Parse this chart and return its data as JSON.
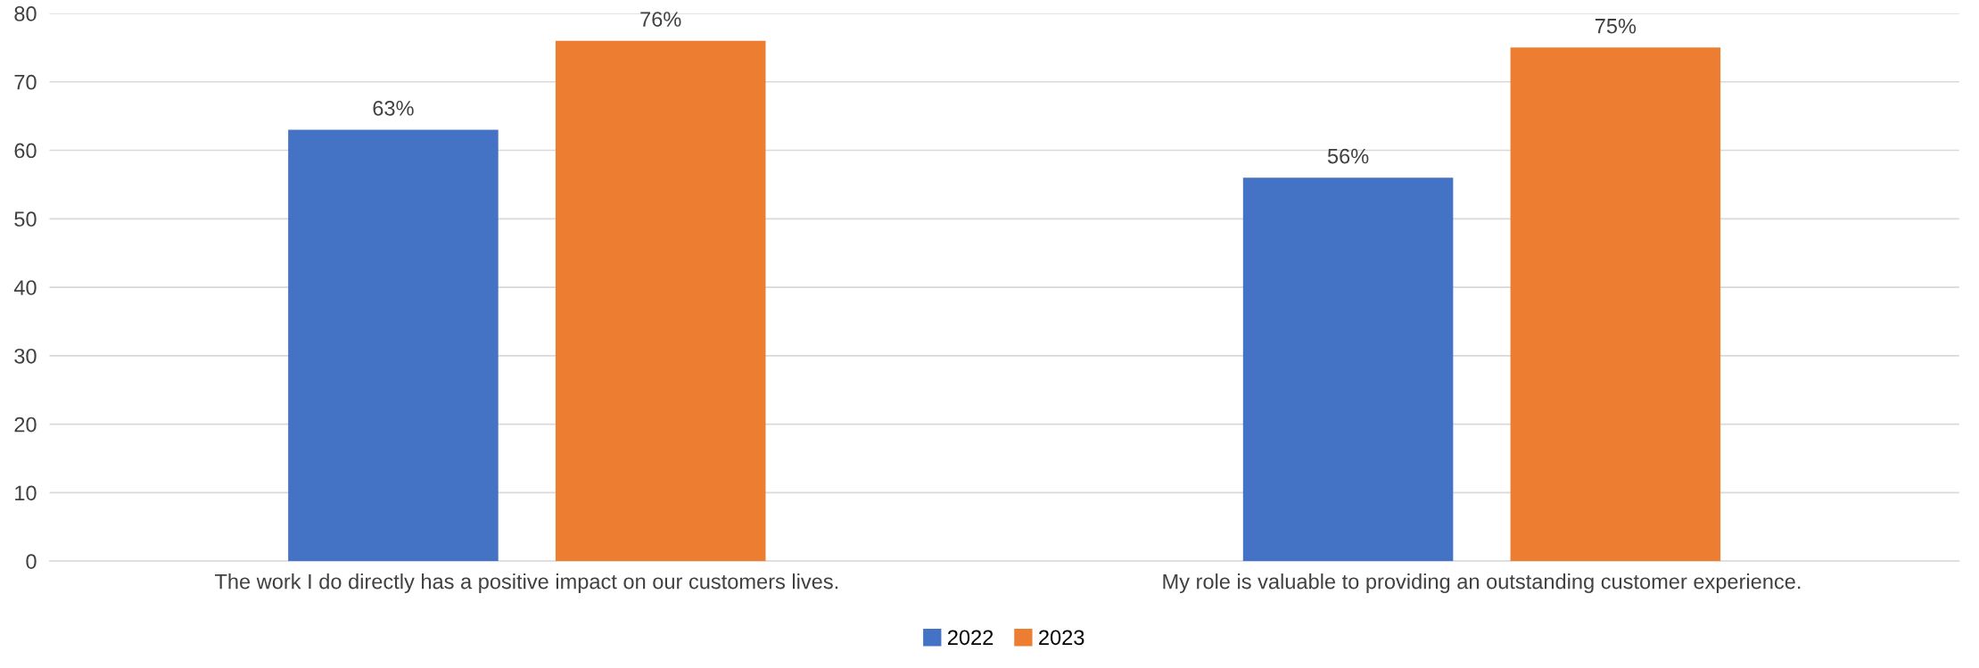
{
  "chart_data": {
    "type": "bar",
    "categories": [
      "The work I do directly has a positive impact on our customers lives.",
      "My role is valuable to providing an outstanding customer experience."
    ],
    "series": [
      {
        "name": "2022",
        "color": "#4472c4",
        "values": [
          63,
          56
        ],
        "value_labels": [
          "63%",
          "56%"
        ]
      },
      {
        "name": "2023",
        "color": "#ed7d31",
        "values": [
          76,
          75
        ],
        "value_labels": [
          "76%",
          "75%"
        ]
      }
    ],
    "ylim": [
      0,
      80
    ],
    "yticks": [
      0,
      10,
      20,
      30,
      40,
      50,
      60,
      70,
      80
    ],
    "grid": "y",
    "legend": "bottom"
  }
}
